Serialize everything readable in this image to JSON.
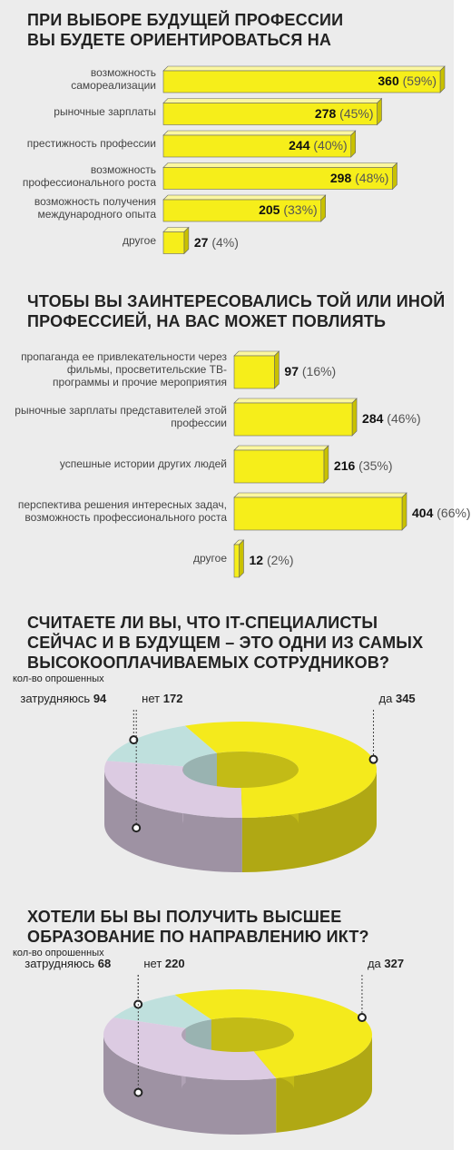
{
  "chart_data": [
    {
      "type": "bar",
      "title": [
        "ПРИ ВЫБОРЕ БУДУЩЕЙ ПРОФЕССИИ",
        "ВЫ БУДЕТЕ ОРИЕНТИРОВАТЬСЯ НА"
      ],
      "categories": [
        "возможность самореализации",
        "рыночные зарплаты",
        "престижность профессии",
        "возможность профессионального роста",
        "возможность получения международного опыта",
        "другое"
      ],
      "values": [
        360,
        278,
        244,
        298,
        205,
        27
      ],
      "share_labels": [
        "(59%)",
        "(45%)",
        "(40%)",
        "(48%)",
        "(33%)",
        "(4%)"
      ],
      "color": "#f6ee1a",
      "label_position": "inside"
    },
    {
      "type": "bar",
      "title": [
        "ЧТОБЫ ВЫ ЗАИНТЕРЕСОВАЛИСЬ ТОЙ ИЛИ ИНОЙ",
        "ПРОФЕССИЕЙ, НА ВАС МОЖЕТ ПОВЛИЯТЬ"
      ],
      "categories": [
        "пропаганда ее привлекательности через фильмы, просветительские ТВ-программы и прочие мероприятия",
        "рыночные зарплаты представителей этой профессии",
        "успешные истории других людей",
        "перспектива решения интересных задач, возможность профессионального роста",
        "другое"
      ],
      "values": [
        97,
        284,
        216,
        404,
        12
      ],
      "share_labels": [
        "(16%)",
        "(46%)",
        "(35%)",
        "(66%)",
        "(2%)"
      ],
      "color": "#f6ee1a",
      "label_position": "outside"
    },
    {
      "type": "donut",
      "title": [
        "СЧИТАЕТЕ ЛИ ВЫ, ЧТО IT-СПЕЦИАЛИСТЫ",
        "СЕЙЧАС И В БУДУЩЕМ – ЭТО ОДНИ ИЗ САМЫХ",
        "ВЫСОКООПЛАЧИВАЕМЫХ СОТРУДНИКОВ?"
      ],
      "subtitle": "кол-во опрошенных",
      "categories": [
        "затрудняюсь",
        "нет",
        "да"
      ],
      "values": [
        94,
        172,
        345
      ],
      "colors": [
        "#bfe0dd",
        "#dccbe2",
        "#f4ea1c"
      ]
    },
    {
      "type": "donut",
      "title": [
        "ХОТЕЛИ БЫ ВЫ ПОЛУЧИТЬ ВЫСШЕЕ",
        "ОБРАЗОВАНИЕ ПО НАПРАВЛЕНИЮ ИКТ?"
      ],
      "subtitle": "кол-во опрошенных",
      "categories": [
        "затрудняюсь",
        "нет",
        "да"
      ],
      "values": [
        68,
        220,
        327
      ],
      "colors": [
        "#bfe0dd",
        "#dccbe2",
        "#f4ea1c"
      ]
    }
  ]
}
